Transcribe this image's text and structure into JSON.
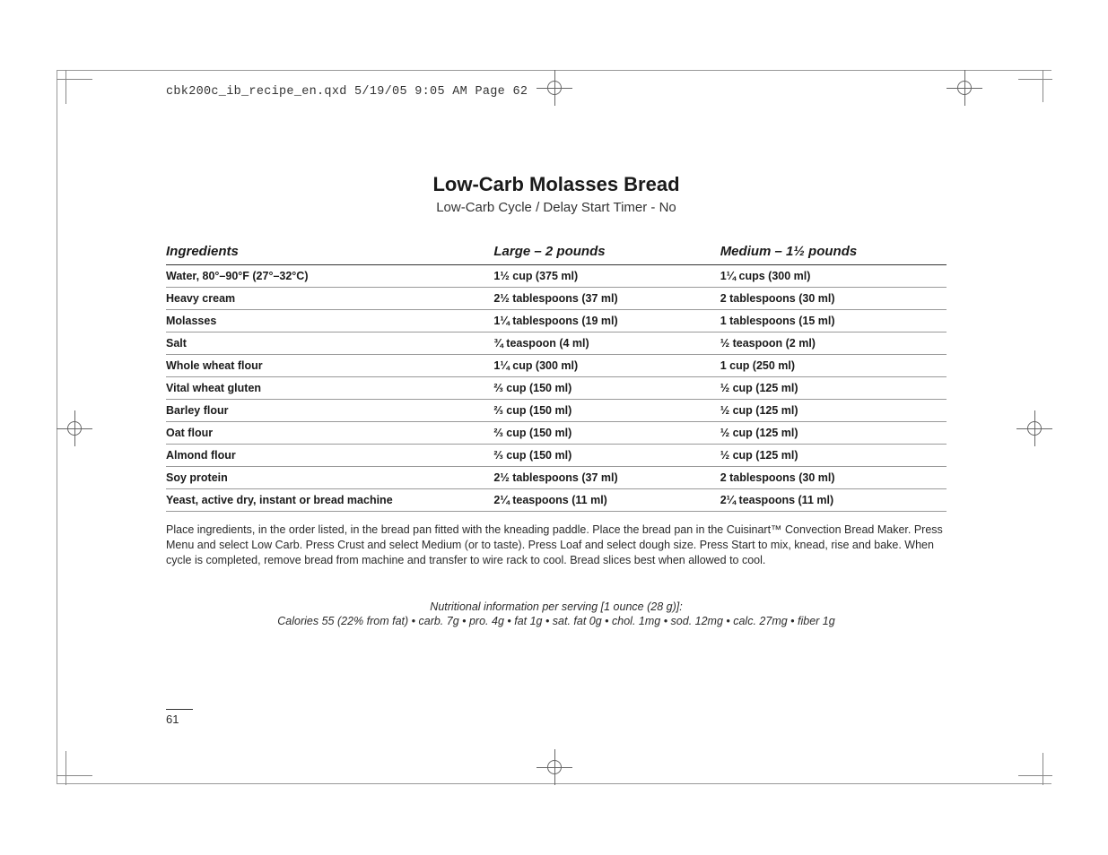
{
  "slug": "cbk200c_ib_recipe_en.qxd  5/19/05  9:05 AM  Page 62",
  "title": "Low-Carb Molasses Bread",
  "subtitle": "Low-Carb Cycle / Delay Start Timer - No",
  "columns": {
    "ingredient": "Ingredients",
    "large": "Large – 2 pounds",
    "medium": "Medium – 1½ pounds"
  },
  "rows": [
    {
      "ing": "Water, 80°–90°F (27°–32°C)",
      "lg": "1½ cup (375 ml)",
      "md": "1¼ cups (300 ml)"
    },
    {
      "ing": "Heavy cream",
      "lg": "2½ tablespoons (37 ml)",
      "md": "2 tablespoons (30 ml)"
    },
    {
      "ing": "Molasses",
      "lg": "1¼ tablespoons (19 ml)",
      "md": "1 tablespoons (15 ml)"
    },
    {
      "ing": "Salt",
      "lg": "¾ teaspoon (4 ml)",
      "md": "½ teaspoon (2 ml)"
    },
    {
      "ing": "Whole wheat flour",
      "lg": "1¼ cup (300 ml)",
      "md": "1 cup (250 ml)"
    },
    {
      "ing": "Vital wheat gluten",
      "lg": "⅔ cup (150 ml)",
      "md": "½ cup (125 ml)"
    },
    {
      "ing": "Barley flour",
      "lg": "⅔ cup (150 ml)",
      "md": "½ cup (125 ml)"
    },
    {
      "ing": "Oat flour",
      "lg": "⅔ cup (150 ml)",
      "md": "½ cup (125 ml)"
    },
    {
      "ing": "Almond flour",
      "lg": "⅔ cup (150 ml)",
      "md": "½ cup (125 ml)"
    },
    {
      "ing": "Soy protein",
      "lg": "2½ tablespoons (37 ml)",
      "md": "2 tablespoons (30 ml)"
    },
    {
      "ing": "Yeast, active dry, instant or bread machine",
      "lg": "2¼ teaspoons (11 ml)",
      "md": "2¼ teaspoons (11 ml)"
    }
  ],
  "instructions": "Place ingredients, in the order listed, in the bread pan fitted with the kneading paddle. Place the bread pan in the Cuisinart™ Convection Bread Maker. Press Menu and select Low Carb. Press Crust and select Medium (or to taste). Press Loaf and select dough size. Press Start to mix, knead, rise and bake. When cycle is completed, remove bread from machine and transfer to wire rack to cool. Bread slices best when allowed to cool.",
  "nutri_head": "Nutritional information per serving [1 ounce (28 g)]:",
  "nutri_body": "Calories 55 (22% from fat) • carb. 7g • pro. 4g • fat 1g • sat. fat 0g • chol. 1mg • sod. 12mg • calc. 27mg • fiber 1g",
  "page_number": "61"
}
